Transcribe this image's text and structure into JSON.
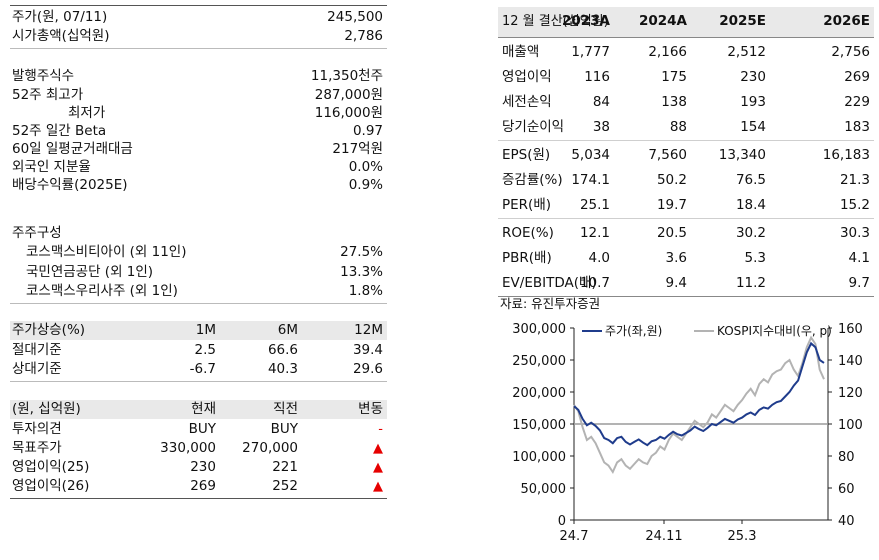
{
  "left": {
    "price_block": [
      {
        "label": "주가(원, 07/11)",
        "value": "245,500"
      },
      {
        "label": "시가총액(십억원)",
        "value": "2,786"
      }
    ],
    "share_block": [
      {
        "label": "발행주식수",
        "value": "11,350천주"
      },
      {
        "label": "52주 최고가",
        "value": "287,000원"
      },
      {
        "label": "최저가",
        "value": "116,000원",
        "indent": true
      },
      {
        "label": "52주 일간 Beta",
        "value": "0.97"
      },
      {
        "label": "60일 일평균거래대금",
        "value": "217억원"
      },
      {
        "label": "외국인 지분율",
        "value": "0.0%"
      },
      {
        "label": "배당수익률(2025E)",
        "value": "0.9%"
      }
    ],
    "holders_title": "주주구성",
    "holders": [
      {
        "label": "코스맥스비티아이 (외 11인)",
        "value": "27.5%"
      },
      {
        "label": "국민연금공단 (외 1인)",
        "value": "13.3%"
      },
      {
        "label": "코스맥스우리사주 (외 1인)",
        "value": "1.8%"
      }
    ],
    "perf": {
      "header": [
        "주가상승(%)",
        "1M",
        "6M",
        "12M"
      ],
      "rows": [
        [
          "절대기준",
          "2.5",
          "66.6",
          "39.4"
        ],
        [
          "상대기준",
          "-6.7",
          "40.3",
          "29.6"
        ]
      ]
    },
    "est": {
      "header": [
        "(원, 십억원)",
        "현재",
        "직전",
        "변동"
      ],
      "rows": [
        [
          "투자의견",
          "BUY",
          "BUY",
          "-"
        ],
        [
          "목표주가",
          "330,000",
          "270,000",
          "▲"
        ],
        [
          "영업이익(25)",
          "230",
          "221",
          "▲"
        ],
        [
          "영업이익(26)",
          "269",
          "252",
          "▲"
        ]
      ]
    }
  },
  "right": {
    "header": [
      "12 월 결산(십억원)",
      "2023A",
      "2024A",
      "2025E",
      "2026E"
    ],
    "rows": [
      [
        "매출액",
        "1,777",
        "2,166",
        "2,512",
        "2,756"
      ],
      [
        "영업이익",
        "116",
        "175",
        "230",
        "269"
      ],
      [
        "세전손익",
        "84",
        "138",
        "193",
        "229"
      ],
      [
        "당기순이익",
        "38",
        "88",
        "154",
        "183"
      ],
      [
        "EPS(원)",
        "5,034",
        "7,560",
        "13,340",
        "16,183"
      ],
      [
        "증감률(%)",
        "174.1",
        "50.2",
        "76.5",
        "21.3"
      ],
      [
        "PER(배)",
        "25.1",
        "19.7",
        "18.4",
        "15.2"
      ],
      [
        "ROE(%)",
        "12.1",
        "20.5",
        "30.2",
        "30.3"
      ],
      [
        "PBR(배)",
        "4.0",
        "3.6",
        "5.3",
        "4.1"
      ],
      [
        "EV/EBITDA(배)",
        "10.7",
        "9.4",
        "11.2",
        "9.7"
      ]
    ],
    "source": "자료: 유진투자증권"
  },
  "chart_data": {
    "type": "line",
    "x_ticks": [
      "24.7",
      "24.11",
      "25.3"
    ],
    "y_left_ticks": [
      "300,000",
      "250,000",
      "200,000",
      "150,000",
      "100,000",
      "50,000",
      "0"
    ],
    "y_right_ticks": [
      "160",
      "140",
      "120",
      "100",
      "80",
      "60",
      "40"
    ],
    "ylim_left": [
      0,
      300000
    ],
    "ylim_right": [
      40,
      160
    ],
    "reference_right": 100,
    "colors": {
      "price": "#1f3c8c",
      "relative": "#b3b3b3",
      "reference": "#9a9a9a"
    },
    "series": [
      {
        "name": "주가(좌,원)",
        "axis": "left",
        "values": [
          178000,
          172000,
          158000,
          148000,
          152000,
          147000,
          140000,
          128000,
          125000,
          120000,
          128000,
          130000,
          122000,
          118000,
          122000,
          126000,
          121000,
          117000,
          123000,
          125000,
          130000,
          127000,
          133000,
          138000,
          134000,
          132000,
          136000,
          140000,
          146000,
          142000,
          139000,
          144000,
          150000,
          148000,
          153000,
          158000,
          155000,
          152000,
          157000,
          160000,
          165000,
          168000,
          164000,
          172000,
          176000,
          174000,
          180000,
          184000,
          186000,
          193000,
          200000,
          210000,
          218000,
          240000,
          262000,
          276000,
          270000,
          250000,
          245500
        ]
      },
      {
        "name": "KOSPI지수대비(우, p)",
        "axis": "right",
        "values": [
          112,
          108,
          98,
          90,
          92,
          88,
          82,
          76,
          74,
          70,
          76,
          78,
          74,
          72,
          75,
          78,
          76,
          75,
          80,
          82,
          86,
          84,
          90,
          94,
          92,
          90,
          94,
          98,
          102,
          100,
          98,
          101,
          106,
          104,
          108,
          112,
          110,
          108,
          112,
          115,
          119,
          122,
          118,
          125,
          128,
          126,
          131,
          133,
          134,
          138,
          140,
          134,
          130,
          138,
          148,
          154,
          150,
          134,
          128
        ]
      }
    ]
  }
}
